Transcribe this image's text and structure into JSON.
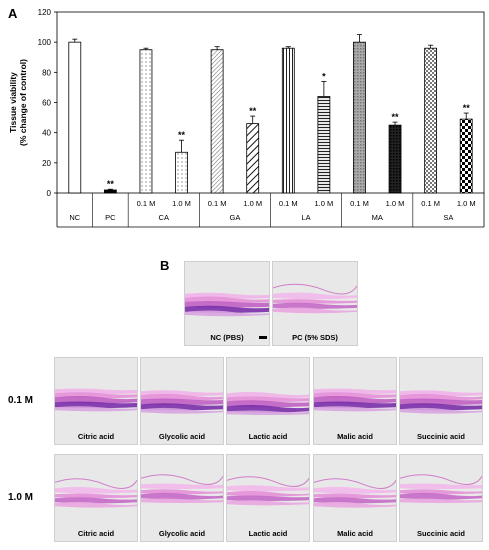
{
  "panels": {
    "a": "A",
    "b": "B"
  },
  "chart_data": {
    "type": "bar",
    "ylabel": "Tissue viability\n(% change of control)",
    "ylim": [
      0,
      120
    ],
    "yticks": [
      0,
      20,
      40,
      60,
      80,
      100,
      120
    ],
    "bars": [
      {
        "group": "NC",
        "label": "",
        "value": 100,
        "err": 2,
        "sig": "",
        "pattern": "white"
      },
      {
        "group": "PC",
        "label": "",
        "value": 2,
        "err": 0.5,
        "sig": "**",
        "pattern": "black"
      },
      {
        "group": "CA",
        "label": "0.1 M",
        "value": 95,
        "err": 1,
        "sig": "",
        "pattern": "dots"
      },
      {
        "group": "CA",
        "label": "1.0 M",
        "value": 27,
        "err": 8,
        "sig": "**",
        "pattern": "dots"
      },
      {
        "group": "GA",
        "label": "0.1 M",
        "value": 95,
        "err": 2,
        "sig": "",
        "pattern": "diag-fine"
      },
      {
        "group": "GA",
        "label": "1.0 M",
        "value": 46,
        "err": 5,
        "sig": "**",
        "pattern": "diag-bold"
      },
      {
        "group": "LA",
        "label": "0.1 M",
        "value": 96,
        "err": 1,
        "sig": "",
        "pattern": "vlines"
      },
      {
        "group": "LA",
        "label": "1.0 M",
        "value": 64,
        "err": 10,
        "sig": "*",
        "pattern": "hlines"
      },
      {
        "group": "MA",
        "label": "0.1 M",
        "value": 100,
        "err": 5,
        "sig": "",
        "pattern": "grid-gray"
      },
      {
        "group": "MA",
        "label": "1.0 M",
        "value": 45,
        "err": 2,
        "sig": "**",
        "pattern": "grid-dark"
      },
      {
        "group": "SA",
        "label": "0.1 M",
        "value": 96,
        "err": 2,
        "sig": "",
        "pattern": "checker-fine"
      },
      {
        "group": "SA",
        "label": "1.0 M",
        "value": 49,
        "err": 4,
        "sig": "**",
        "pattern": "checker"
      }
    ],
    "groups": [
      "NC",
      "PC",
      "CA",
      "GA",
      "LA",
      "MA",
      "SA"
    ],
    "grid": false
  },
  "histology": {
    "controls": [
      "NC (PBS)",
      "PC (5% SDS)"
    ],
    "rows": [
      {
        "label": "0.1 M",
        "captions": [
          "Citric acid",
          "Glycolic acid",
          "Lactic acid",
          "Malic acid",
          "Succinic acid"
        ]
      },
      {
        "label": "1.0 M",
        "captions": [
          "Citric acid",
          "Glycolic acid",
          "Lactic acid",
          "Malic acid",
          "Succinic acid"
        ]
      }
    ],
    "colors": {
      "stain_dark": "#7a2fa8",
      "stain_light": "#e690d8",
      "background": "#e8e8e8"
    }
  }
}
